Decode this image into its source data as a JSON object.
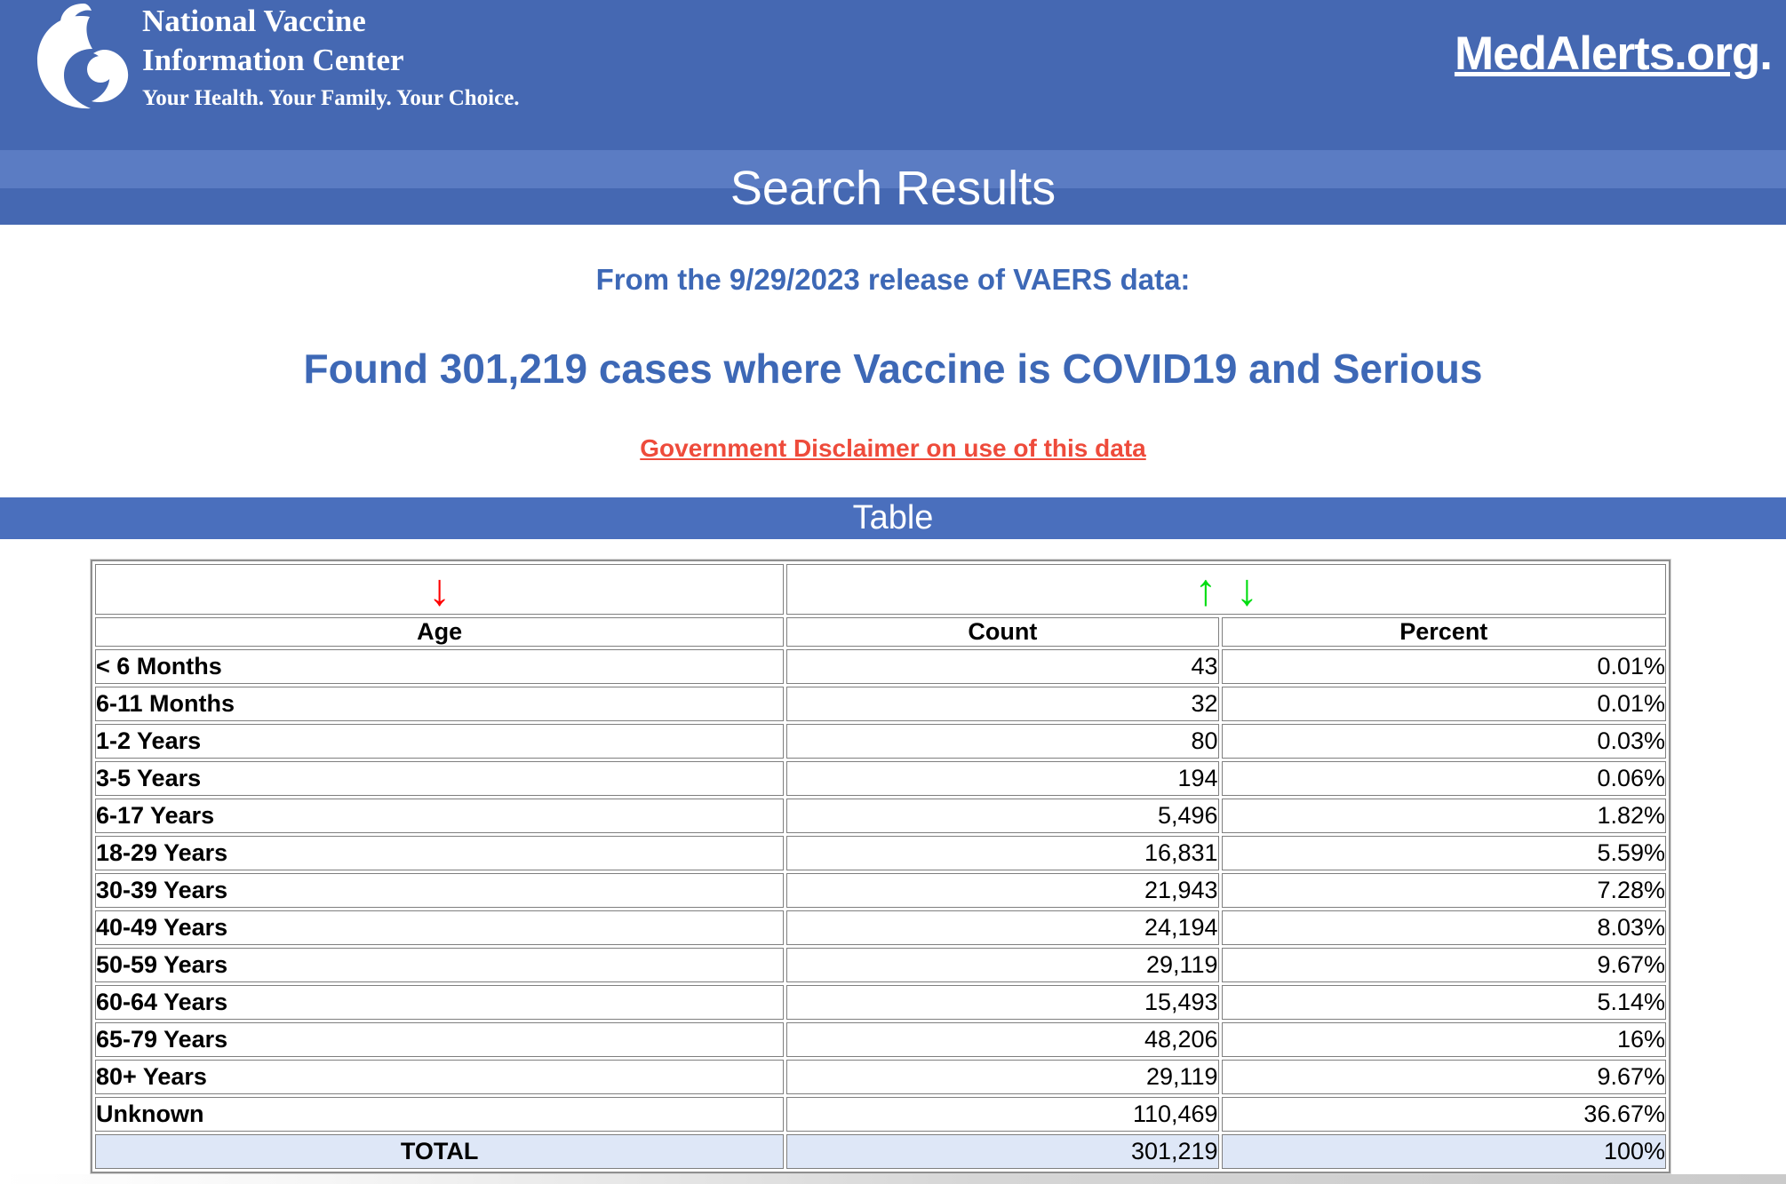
{
  "header": {
    "org_name_line1": "National Vaccine",
    "org_name_line2": "Information Center",
    "tagline": "Your Health. Your Family. Your Choice.",
    "site_link": "MedAlerts.org",
    "site_link_suffix": "."
  },
  "banner": {
    "title": "Search Results"
  },
  "results": {
    "release_line": "From the 9/29/2023 release of VAERS data:",
    "headline": "Found 301,219 cases where Vaccine is COVID19 and Serious",
    "disclaimer_link": "Government Disclaimer on use of this data"
  },
  "table_section": {
    "title": "Table",
    "sort_icons": {
      "age_descending_glyph": "↓",
      "value_ascending_glyph": "↑",
      "value_descending_glyph": "↓"
    },
    "columns": [
      "Age",
      "Count",
      "Percent"
    ],
    "rows": [
      {
        "age": "< 6 Months",
        "count": "43",
        "percent": "0.01%"
      },
      {
        "age": "6-11 Months",
        "count": "32",
        "percent": "0.01%"
      },
      {
        "age": "1-2 Years",
        "count": "80",
        "percent": "0.03%"
      },
      {
        "age": "3-5 Years",
        "count": "194",
        "percent": "0.06%"
      },
      {
        "age": "6-17 Years",
        "count": "5,496",
        "percent": "1.82%"
      },
      {
        "age": "18-29 Years",
        "count": "16,831",
        "percent": "5.59%"
      },
      {
        "age": "30-39 Years",
        "count": "21,943",
        "percent": "7.28%"
      },
      {
        "age": "40-49 Years",
        "count": "24,194",
        "percent": "8.03%"
      },
      {
        "age": "50-59 Years",
        "count": "29,119",
        "percent": "9.67%"
      },
      {
        "age": "60-64 Years",
        "count": "15,493",
        "percent": "5.14%"
      },
      {
        "age": "65-79 Years",
        "count": "48,206",
        "percent": "16%"
      },
      {
        "age": "80+ Years",
        "count": "29,119",
        "percent": "9.67%"
      },
      {
        "age": "Unknown",
        "count": "110,469",
        "percent": "36.67%"
      }
    ],
    "total": {
      "label": "TOTAL",
      "count": "301,219",
      "percent": "100%"
    }
  },
  "colors": {
    "header_blue": "#4568b2",
    "banner_stripe_blue": "#5b7cc3",
    "table_banner_blue": "#4a6fbd",
    "heading_text_blue": "#3d68b6",
    "disclaimer_red": "#ee4b3b",
    "sort_arrow_red": "#ff0000",
    "sort_arrow_green": "#00dd11",
    "total_row_background": "#dee7f7"
  }
}
